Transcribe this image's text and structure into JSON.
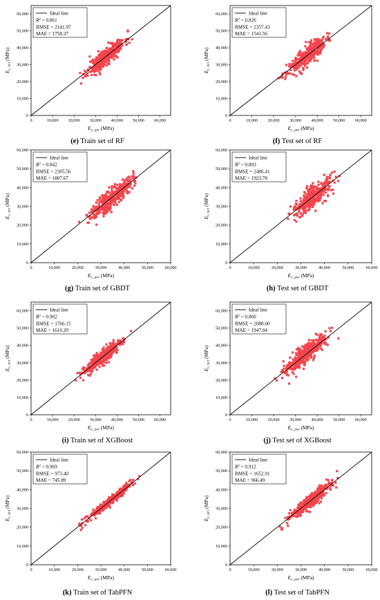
{
  "figure": {
    "xlabel": "E_c, pre (MPa)",
    "ylabel": "E_c, act (MPa)",
    "legend_line": "Ideal line",
    "colors": {
      "marker": "#f4454d",
      "line": "#000000",
      "axis": "#000000"
    }
  },
  "chart_data": [
    {
      "type": "scatter",
      "id": "e",
      "caption_letter": "(e)",
      "caption_text": " Train set of RF",
      "xlim": [
        0,
        65000
      ],
      "ylim": [
        0,
        65000
      ],
      "ticks": [
        0,
        10000,
        20000,
        30000,
        40000,
        50000,
        60000
      ],
      "tick_labels": [
        "0",
        "10,000",
        "20,000",
        "30,000",
        "40,000",
        "50,000",
        "60,000"
      ],
      "r2": "0.861",
      "rmse": "2141.97",
      "mae": "1758.37",
      "spread": 2600,
      "n": 360,
      "xrange": [
        20000,
        50000
      ],
      "seed": 11
    },
    {
      "type": "scatter",
      "id": "f",
      "caption_letter": "(f)",
      "caption_text": " Test set of RF",
      "xlim": [
        0,
        65000
      ],
      "ylim": [
        0,
        65000
      ],
      "ticks": [
        0,
        10000,
        20000,
        30000,
        40000,
        50000,
        60000
      ],
      "tick_labels": [
        "0",
        "10,000",
        "20,000",
        "30,000",
        "40,000",
        "50,000",
        "60,000"
      ],
      "r2": "0.826",
      "rmse": "2357.43",
      "mae": "1541.56",
      "spread": 2800,
      "n": 340,
      "xrange": [
        20000,
        50000
      ],
      "seed": 23
    },
    {
      "type": "scatter",
      "id": "g",
      "caption_letter": "(g)",
      "caption_text": " Train set of GBDT",
      "xlim": [
        0,
        60000
      ],
      "ylim": [
        0,
        60000
      ],
      "ticks": [
        0,
        10000,
        20000,
        30000,
        40000,
        50000,
        60000
      ],
      "tick_labels": [
        "0",
        "10,000",
        "20,000",
        "30,000",
        "40,000",
        "50,000",
        "60,000"
      ],
      "r2": "0.842",
      "rmse": "2305.56",
      "mae": "1807.67",
      "spread": 2700,
      "n": 360,
      "xrange": [
        19000,
        50000
      ],
      "seed": 37
    },
    {
      "type": "scatter",
      "id": "h",
      "caption_letter": "(h)",
      "caption_text": " Test set of GBDT",
      "xlim": [
        0,
        60000
      ],
      "ylim": [
        0,
        60000
      ],
      "ticks": [
        0,
        10000,
        20000,
        30000,
        40000,
        50000,
        60000
      ],
      "tick_labels": [
        "0",
        "10,000",
        "20,000",
        "30,000",
        "40,000",
        "50,000",
        "60,000"
      ],
      "r2": "0.803",
      "rmse": "2486.41",
      "mae": "1923.78",
      "spread": 3000,
      "n": 340,
      "xrange": [
        20000,
        50000
      ],
      "seed": 41
    },
    {
      "type": "scatter",
      "id": "i",
      "caption_letter": "(i)",
      "caption_text": " Train set of XGBoost",
      "xlim": [
        0,
        65000
      ],
      "ylim": [
        0,
        65000
      ],
      "ticks": [
        0,
        10000,
        20000,
        30000,
        40000,
        50000,
        60000
      ],
      "tick_labels": [
        "0",
        "10,000",
        "20,000",
        "30,000",
        "40,000",
        "50,000",
        "60,000"
      ],
      "r2": "0.902",
      "rmse": "1766.15",
      "mae": "1610.20",
      "spread": 2000,
      "n": 380,
      "xrange": [
        17000,
        50000
      ],
      "seed": 53
    },
    {
      "type": "scatter",
      "id": "j",
      "caption_letter": "(j)",
      "caption_text": " Test set of XGBoost",
      "xlim": [
        0,
        65000
      ],
      "ylim": [
        0,
        65000
      ],
      "ticks": [
        0,
        10000,
        20000,
        30000,
        40000,
        50000,
        60000
      ],
      "tick_labels": [
        "0",
        "10,000",
        "20,000",
        "30,000",
        "40,000",
        "50,000",
        "60,000"
      ],
      "r2": "0.860",
      "rmse": "2088.00",
      "mae": "1947.04",
      "spread": 2700,
      "n": 360,
      "xrange": [
        18000,
        50000
      ],
      "seed": 67
    },
    {
      "type": "scatter",
      "id": "k",
      "caption_letter": "(k)",
      "caption_text": " Train set of TabPFN",
      "xlim": [
        0,
        60000
      ],
      "ylim": [
        0,
        60000
      ],
      "ticks": [
        0,
        10000,
        20000,
        30000,
        40000,
        50000,
        60000
      ],
      "tick_labels": [
        "0",
        "10,000",
        "20,000",
        "30,000",
        "40,000",
        "50,000",
        "60,000"
      ],
      "r2": "0.969",
      "rmse": "973.40",
      "mae": "745.89",
      "spread": 1100,
      "n": 400,
      "xrange": [
        17000,
        50000
      ],
      "seed": 71
    },
    {
      "type": "scatter",
      "id": "l",
      "caption_letter": "(l)",
      "caption_text": " Test set of TabPFN",
      "xlim": [
        0,
        60000
      ],
      "ylim": [
        0,
        60000
      ],
      "ticks": [
        0,
        10000,
        20000,
        30000,
        40000,
        50000,
        60000
      ],
      "tick_labels": [
        "0",
        "10,000",
        "20,000",
        "30,000",
        "40,000",
        "50,000",
        "60,000"
      ],
      "r2": "0.912",
      "rmse": "1652.91",
      "mae": "966.49",
      "spread": 1800,
      "n": 360,
      "xrange": [
        18000,
        50000
      ],
      "seed": 83
    }
  ]
}
